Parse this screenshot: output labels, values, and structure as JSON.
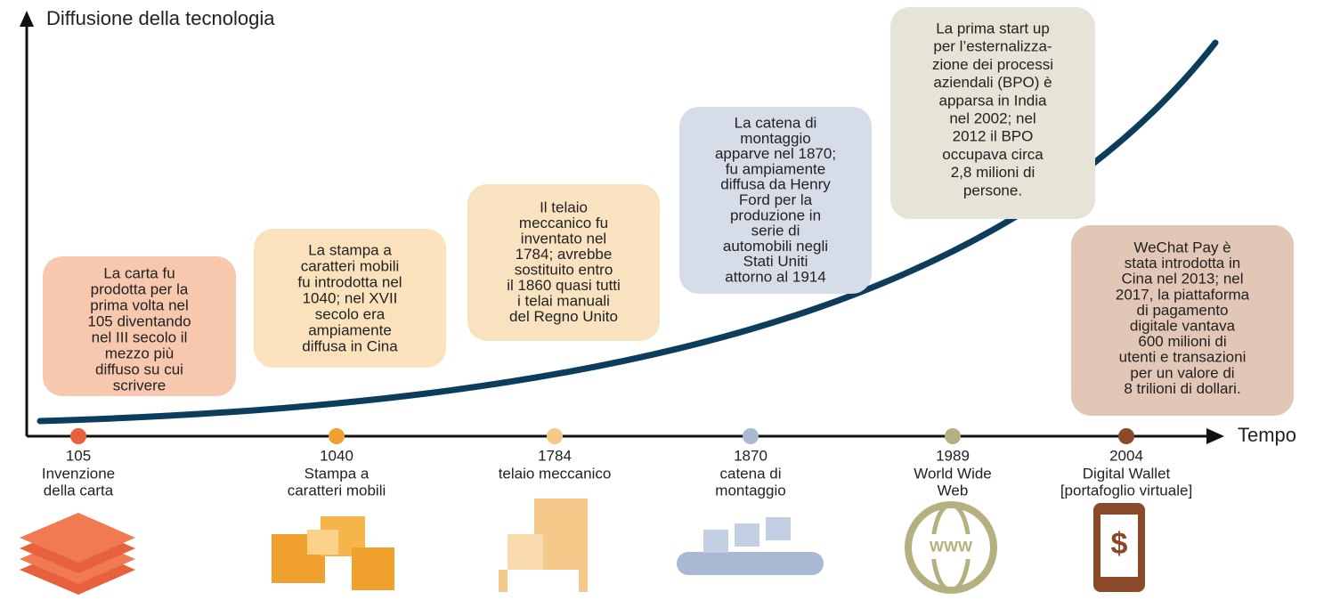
{
  "y_axis_label": "Diffusione della tecnologia",
  "x_axis_label": "Tempo",
  "events": [
    {
      "year": "105",
      "label": [
        "Invenzione",
        "della carta"
      ],
      "note": [
        "La carta fu",
        "prodotta per la",
        "prima volta nel",
        "105 diventando",
        "nel III secolo il",
        "mezzo più",
        "diffuso su cui",
        "scrivere"
      ]
    },
    {
      "year": "1040",
      "label": [
        "Stampa a",
        "caratteri mobili"
      ],
      "note": [
        "La stampa a",
        "caratteri mobili",
        "fu introdotta nel",
        "1040; nel XVII",
        "secolo era",
        "ampiamente",
        "diffusa in Cina"
      ]
    },
    {
      "year": "1784",
      "label": [
        "telaio meccanico"
      ],
      "note": [
        "Il telaio",
        "meccanico fu",
        "inventato nel",
        "1784; avrebbe",
        "sostituito entro",
        "il 1860 quasi tutti",
        "i telai manuali",
        "del Regno Unito"
      ]
    },
    {
      "year": "1870",
      "label": [
        "catena di",
        "montaggio"
      ],
      "note": [
        "La catena di",
        "montaggio",
        "apparve nel 1870;",
        "fu ampiamente",
        "diffusa da Henry",
        "Ford per la",
        "produzione in",
        "serie di",
        "automobili negli",
        "Stati Uniti",
        "attorno al 1914"
      ]
    },
    {
      "year": "1989",
      "label": [
        "World Wide",
        "Web"
      ],
      "note": [
        "La prima start up",
        "per l’esternalizza-",
        "zione dei processi",
        "aziendali (BPO) è",
        "apparsa in India",
        "nel 2002; nel",
        "2012 il BPO",
        "occupava circa",
        "2,8 milioni di",
        "persone."
      ]
    },
    {
      "year": "2004",
      "label": [
        "Digital Wallet",
        "[portafoglio virtuale]"
      ],
      "note": [
        "WeChat Pay è",
        "stata introdotta in",
        "Cina nel 2013; nel",
        "2017, la piattaforma",
        "di pagamento",
        "digitale vantava",
        "600 milioni di",
        "utenti e transazioni",
        "per un valore di",
        "8 trilioni di dollari."
      ]
    }
  ]
}
